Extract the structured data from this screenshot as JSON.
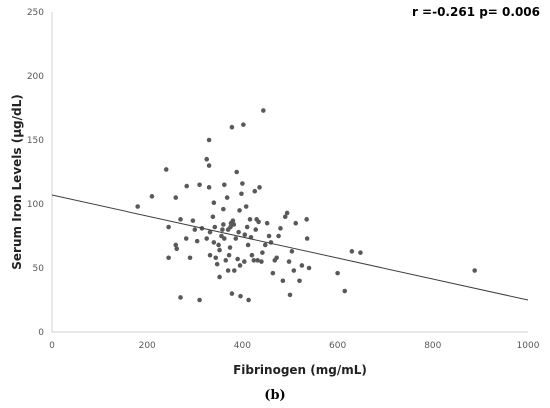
{
  "chart_data": {
    "type": "scatter",
    "xlabel": "Fibrinogen (mg/mL)",
    "ylabel": "Serum Iron  Levels (µg/dL)",
    "annotation": "r =-0.261 p= 0.006",
    "panel_label": "(b)",
    "xlim": [
      0,
      1000
    ],
    "ylim": [
      0,
      250
    ],
    "xticks": [
      0,
      200,
      400,
      600,
      800,
      1000
    ],
    "yticks": [
      0,
      50,
      100,
      150,
      200,
      250
    ],
    "grid": false,
    "marker_color": "#595959",
    "trendline": {
      "x": [
        0,
        1000
      ],
      "y": [
        107,
        25
      ]
    },
    "points": [
      [
        180,
        98
      ],
      [
        210,
        106
      ],
      [
        240,
        127
      ],
      [
        245,
        82
      ],
      [
        245,
        58
      ],
      [
        260,
        68
      ],
      [
        262,
        65
      ],
      [
        260,
        105
      ],
      [
        270,
        88
      ],
      [
        270,
        27
      ],
      [
        282,
        73
      ],
      [
        283,
        114
      ],
      [
        290,
        58
      ],
      [
        296,
        87
      ],
      [
        300,
        80
      ],
      [
        305,
        71
      ],
      [
        310,
        25
      ],
      [
        310,
        115
      ],
      [
        315,
        81
      ],
      [
        325,
        73
      ],
      [
        325,
        135
      ],
      [
        330,
        150
      ],
      [
        330,
        130
      ],
      [
        330,
        113
      ],
      [
        332,
        78
      ],
      [
        332,
        60
      ],
      [
        338,
        90
      ],
      [
        340,
        101
      ],
      [
        340,
        70
      ],
      [
        342,
        82
      ],
      [
        344,
        58
      ],
      [
        347,
        53
      ],
      [
        350,
        68
      ],
      [
        352,
        64
      ],
      [
        352,
        43
      ],
      [
        356,
        75
      ],
      [
        358,
        80
      ],
      [
        360,
        84
      ],
      [
        360,
        96
      ],
      [
        362,
        115
      ],
      [
        362,
        73
      ],
      [
        365,
        56
      ],
      [
        368,
        105
      ],
      [
        370,
        80
      ],
      [
        370,
        48
      ],
      [
        372,
        60
      ],
      [
        374,
        66
      ],
      [
        375,
        82
      ],
      [
        376,
        85
      ],
      [
        378,
        160
      ],
      [
        378,
        30
      ],
      [
        380,
        87
      ],
      [
        382,
        84
      ],
      [
        383,
        48
      ],
      [
        386,
        73
      ],
      [
        388,
        125
      ],
      [
        390,
        57
      ],
      [
        392,
        78
      ],
      [
        394,
        95
      ],
      [
        395,
        52
      ],
      [
        396,
        28
      ],
      [
        398,
        108
      ],
      [
        400,
        116
      ],
      [
        402,
        162
      ],
      [
        404,
        55
      ],
      [
        405,
        76
      ],
      [
        408,
        98
      ],
      [
        410,
        82
      ],
      [
        412,
        68
      ],
      [
        413,
        25
      ],
      [
        416,
        88
      ],
      [
        418,
        74
      ],
      [
        420,
        60
      ],
      [
        424,
        56
      ],
      [
        426,
        110
      ],
      [
        428,
        80
      ],
      [
        430,
        88
      ],
      [
        432,
        56
      ],
      [
        434,
        86
      ],
      [
        436,
        113
      ],
      [
        440,
        55
      ],
      [
        442,
        62
      ],
      [
        444,
        173
      ],
      [
        448,
        68
      ],
      [
        452,
        85
      ],
      [
        456,
        75
      ],
      [
        460,
        70
      ],
      [
        464,
        46
      ],
      [
        468,
        56
      ],
      [
        472,
        58
      ],
      [
        476,
        75
      ],
      [
        480,
        81
      ],
      [
        485,
        40
      ],
      [
        490,
        90
      ],
      [
        494,
        93
      ],
      [
        498,
        55
      ],
      [
        500,
        29
      ],
      [
        504,
        63
      ],
      [
        508,
        48
      ],
      [
        512,
        85
      ],
      [
        520,
        40
      ],
      [
        525,
        52
      ],
      [
        535,
        88
      ],
      [
        536,
        73
      ],
      [
        540,
        50
      ],
      [
        600,
        46
      ],
      [
        615,
        32
      ],
      [
        630,
        63
      ],
      [
        648,
        62
      ],
      [
        888,
        48
      ]
    ]
  }
}
